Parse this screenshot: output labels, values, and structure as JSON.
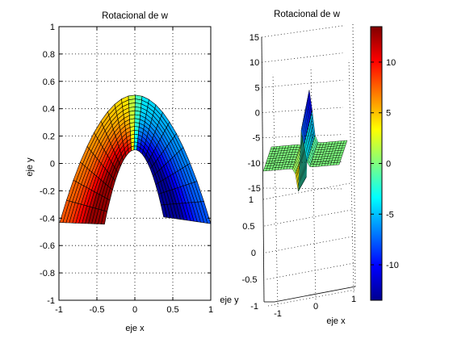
{
  "chart_data": [
    {
      "type": "surface",
      "view": "top (2D projection)",
      "title": "Rotacional de w",
      "xlabel": "eje x",
      "ylabel": "eje y",
      "xlim": [
        -1,
        1
      ],
      "ylim": [
        -1,
        1
      ],
      "xticks": [
        "-1",
        "-0.5",
        "0",
        "0.5",
        "1"
      ],
      "yticks": [
        "-1",
        "-0.8",
        "-0.6",
        "-0.4",
        "-0.2",
        "0",
        "0.2",
        "0.4",
        "0.6",
        "0.8",
        "1"
      ],
      "grid": true,
      "colormap": "jet",
      "surface_domain": {
        "region": "parabolic band between y = 0.5 - x^2 and y = -x^2 (approx.)",
        "x_range": [
          -1,
          1
        ],
        "outer_peak_y": 0.5,
        "inner_peak_y": 0.1,
        "left_tip_y": -0.45,
        "right_tip_y": -0.43
      },
      "color_value_range": [
        -13,
        13
      ]
    },
    {
      "type": "surface",
      "view": "3D",
      "title": "Rotacional de w",
      "xlabel": "eje x",
      "ylabel": "eje y",
      "x_ticks": [
        "-1",
        "0",
        "1"
      ],
      "y_ticks": [
        "1",
        "0.5",
        "0",
        "-0.5",
        "-1"
      ],
      "z_ticks": [
        "15",
        "10",
        "5",
        "0",
        "-5",
        "-10",
        "-15"
      ],
      "zlim": [
        -15,
        15
      ],
      "grid": true,
      "colormap": "jet",
      "peak_value": 13,
      "trough_value": -13
    }
  ],
  "colorbar": {
    "ticks": [
      "10",
      "5",
      "0",
      "-5",
      "-10"
    ],
    "range": [
      -13.5,
      13.5
    ],
    "colormap": "jet"
  },
  "colors": {
    "axis": "#000000",
    "grid": "#000000",
    "mesh": "#000000",
    "background": "#ffffff"
  }
}
